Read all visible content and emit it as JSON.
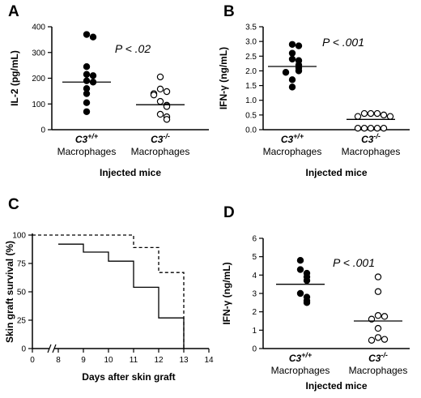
{
  "chart_data": [
    {
      "type": "scatter",
      "panel_label": "A",
      "ylabel": "IL-2 (pg/mL)",
      "xlabel": "Injected mice",
      "ylim": [
        0,
        400
      ],
      "yticks": [
        "0",
        "100",
        "200",
        "300",
        "400"
      ],
      "annotation": "P < .02",
      "groups": [
        {
          "gene": "C3",
          "sup": "+/+",
          "label": "Macrophages",
          "fill": "#000000",
          "mean": 185,
          "values": [
            370,
            360,
            245,
            215,
            210,
            190,
            185,
            160,
            140,
            105,
            70
          ]
        },
        {
          "gene": "C3",
          "sup": "-/-",
          "label": "Macrophages",
          "fill": "#ffffff",
          "mean": 97,
          "values": [
            205,
            158,
            148,
            140,
            135,
            110,
            95,
            90,
            60,
            50,
            40
          ]
        }
      ]
    },
    {
      "type": "scatter",
      "panel_label": "B",
      "ylabel": "IFN-γ (ng/mL)",
      "xlabel": "Injected mice",
      "ylim": [
        0,
        3.5
      ],
      "yticks": [
        "0.0",
        "0.5",
        "1.0",
        "1.5",
        "2.0",
        "2.5",
        "3.0",
        "3.5"
      ],
      "annotation": "P < .001",
      "groups": [
        {
          "gene": "C3",
          "sup": "+/+",
          "label": "Macrophages",
          "fill": "#000000",
          "mean": 2.15,
          "values": [
            2.9,
            2.85,
            2.6,
            2.4,
            2.35,
            2.2,
            2.1,
            2.0,
            1.95,
            1.7,
            1.45
          ]
        },
        {
          "gene": "C3",
          "sup": "-/-",
          "label": "Macrophages",
          "fill": "#ffffff",
          "mean": 0.35,
          "values": [
            0.55,
            0.55,
            0.55,
            0.5,
            0.45,
            0.45,
            0.05,
            0.05,
            0.05,
            0.05,
            0.05
          ]
        }
      ]
    },
    {
      "type": "line",
      "subtype": "survival",
      "panel_label": "C",
      "ylabel": "Skin graft survival (%)",
      "xlabel": "Days after skin graft",
      "xlim": [
        0,
        14
      ],
      "xticks": [
        "0",
        "8",
        "9",
        "10",
        "11",
        "12",
        "13",
        "14"
      ],
      "ylim": [
        0,
        100
      ],
      "yticks": [
        "0",
        "25",
        "50",
        "75",
        "100"
      ],
      "series": [
        {
          "style": "solid",
          "steps": [
            [
              8,
              92
            ],
            [
              9,
              92
            ],
            [
              9,
              85
            ],
            [
              10,
              85
            ],
            [
              10,
              77
            ],
            [
              11,
              77
            ],
            [
              11,
              54
            ],
            [
              12,
              54
            ],
            [
              12,
              27
            ],
            [
              13,
              27
            ],
            [
              13,
              0
            ]
          ]
        },
        {
          "style": "dashed",
          "steps": [
            [
              8,
              100
            ],
            [
              11,
              100
            ],
            [
              11,
              89
            ],
            [
              12,
              89
            ],
            [
              12,
              67
            ],
            [
              13,
              67
            ],
            [
              13,
              0
            ]
          ]
        }
      ]
    },
    {
      "type": "scatter",
      "panel_label": "D",
      "ylabel": "IFN-γ (ng/mL)",
      "xlabel": "Injected mice",
      "ylim": [
        0,
        6
      ],
      "yticks": [
        "0",
        "1",
        "2",
        "3",
        "4",
        "5",
        "6"
      ],
      "annotation": "P < .001",
      "groups": [
        {
          "gene": "C3",
          "sup": "+/+",
          "label": "Macrophages",
          "fill": "#000000",
          "mean": 3.5,
          "values": [
            4.8,
            4.3,
            4.1,
            3.9,
            3.7,
            3.0,
            2.8,
            2.6,
            2.5
          ]
        },
        {
          "gene": "C3",
          "sup": "-/-",
          "label": "Macrophages",
          "fill": "#ffffff",
          "mean": 1.5,
          "values": [
            3.9,
            3.1,
            1.8,
            1.75,
            1.6,
            1.1,
            0.6,
            0.5,
            0.45
          ]
        }
      ]
    }
  ]
}
